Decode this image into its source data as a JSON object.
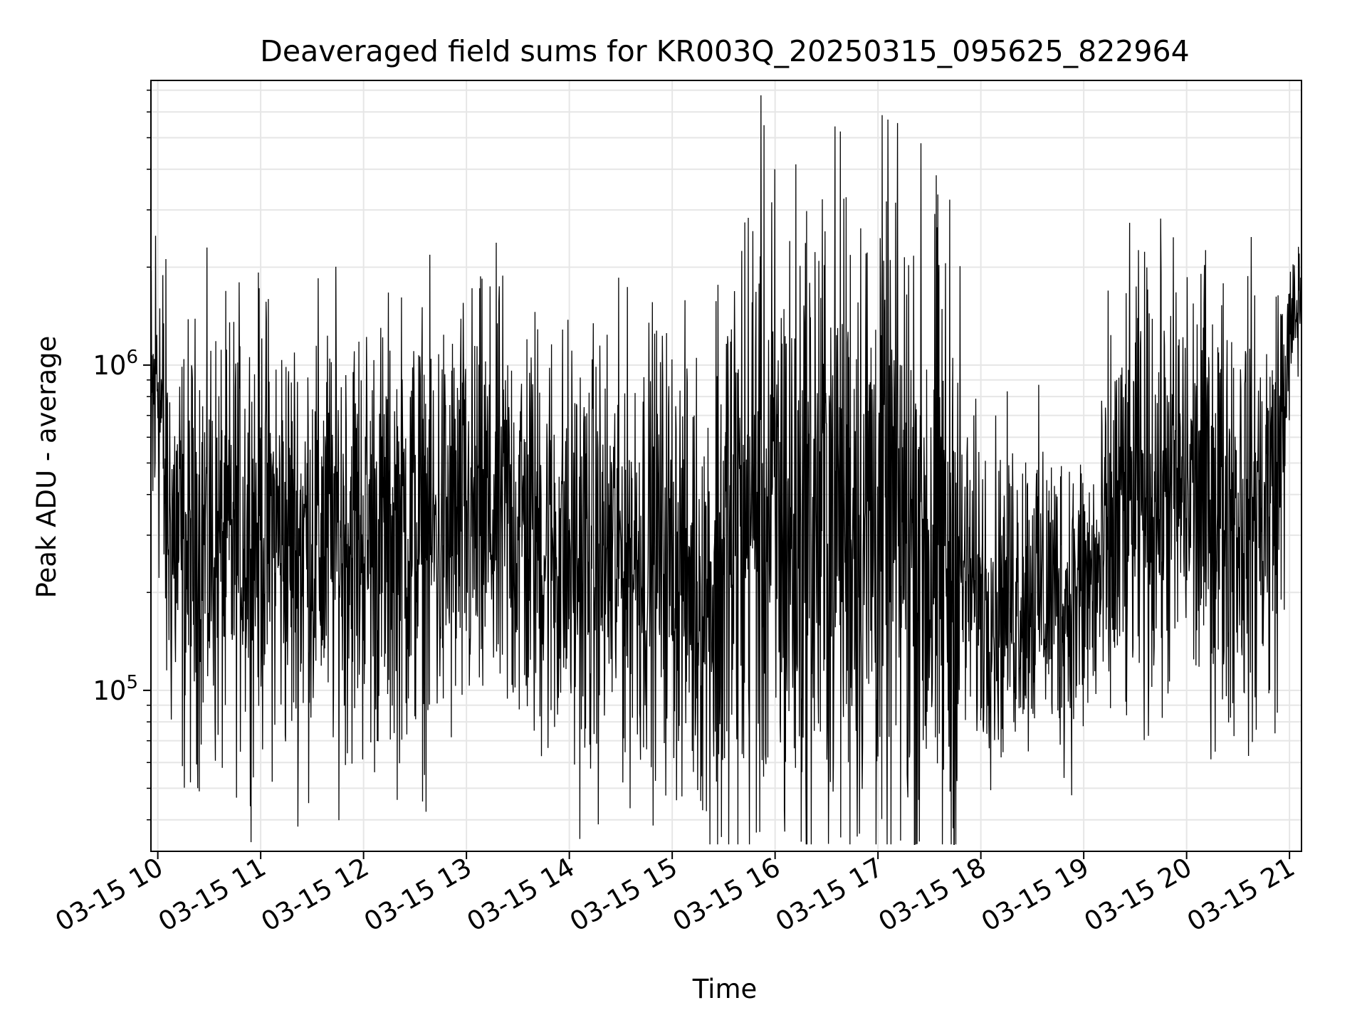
{
  "chart_data": {
    "type": "line",
    "title": "Deaveraged field sums for KR003Q_20250315_095625_822964",
    "xlabel": "Time",
    "ylabel": "Peak ADU - average",
    "yscale": "log",
    "ylim": [
      32000,
      7500000
    ],
    "xlim": [
      "2025-03-15 09:56",
      "2025-03-15 21:07"
    ],
    "xtick_labels": [
      "03-15 10",
      "03-15 11",
      "03-15 12",
      "03-15 13",
      "03-15 14",
      "03-15 15",
      "03-15 16",
      "03-15 17",
      "03-15 18",
      "03-15 19",
      "03-15 20",
      "03-15 21"
    ],
    "ytick_labels": [
      {
        "value": 100000,
        "base": "10",
        "exp": "5"
      },
      {
        "value": 1000000,
        "base": "10",
        "exp": "6"
      }
    ],
    "grid": true,
    "legend": "none",
    "line_color": "#000000",
    "grid_color": "#e6e6e6",
    "series": [
      {
        "x": [
          "2025-03-15 09:56",
          "2025-03-15 10:00",
          "2025-03-15 10:05",
          "2025-03-15 10:10",
          "2025-03-15 10:15",
          "2025-03-15 10:20",
          "2025-03-15 10:25",
          "2025-03-15 10:30",
          "2025-03-15 10:35",
          "2025-03-15 10:40",
          "2025-03-15 10:45",
          "2025-03-15 10:50",
          "2025-03-15 10:55",
          "2025-03-15 11:00",
          "2025-03-15 11:10",
          "2025-03-15 11:20",
          "2025-03-15 11:30",
          "2025-03-15 11:40",
          "2025-03-15 11:50",
          "2025-03-15 12:00",
          "2025-03-15 12:10",
          "2025-03-15 12:20",
          "2025-03-15 12:30",
          "2025-03-15 12:40",
          "2025-03-15 12:50",
          "2025-03-15 13:00",
          "2025-03-15 13:10",
          "2025-03-15 13:20",
          "2025-03-15 13:30",
          "2025-03-15 13:40",
          "2025-03-15 13:50",
          "2025-03-15 14:00",
          "2025-03-15 14:10",
          "2025-03-15 14:20",
          "2025-03-15 14:30",
          "2025-03-15 14:40",
          "2025-03-15 14:50",
          "2025-03-15 15:00",
          "2025-03-15 15:10",
          "2025-03-15 15:20",
          "2025-03-15 15:30",
          "2025-03-15 15:40",
          "2025-03-15 15:45",
          "2025-03-15 15:50",
          "2025-03-15 16:00",
          "2025-03-15 16:10",
          "2025-03-15 16:20",
          "2025-03-15 16:30",
          "2025-03-15 16:40",
          "2025-03-15 16:50",
          "2025-03-15 17:00",
          "2025-03-15 17:10",
          "2025-03-15 17:20",
          "2025-03-15 17:30",
          "2025-03-15 17:40",
          "2025-03-15 17:50",
          "2025-03-15 18:00",
          "2025-03-15 18:10",
          "2025-03-15 18:20",
          "2025-03-15 18:30",
          "2025-03-15 18:40",
          "2025-03-15 18:50",
          "2025-03-15 19:00",
          "2025-03-15 19:10",
          "2025-03-15 19:20",
          "2025-03-15 19:30",
          "2025-03-15 19:40",
          "2025-03-15 19:50",
          "2025-03-15 20:00",
          "2025-03-15 20:10",
          "2025-03-15 20:20",
          "2025-03-15 20:30",
          "2025-03-15 20:40",
          "2025-03-15 20:50",
          "2025-03-15 20:55",
          "2025-03-15 21:00",
          "2025-03-15 21:05",
          "2025-03-15 21:07"
        ],
        "y": [
          500000,
          1100000,
          350000,
          300000,
          250000,
          260000,
          300000,
          280000,
          270000,
          260000,
          300000,
          320000,
          310000,
          330000,
          300000,
          280000,
          300000,
          290000,
          310000,
          300000,
          290000,
          300000,
          310000,
          290000,
          300000,
          320000,
          330000,
          340000,
          330000,
          300000,
          280000,
          260000,
          240000,
          250000,
          260000,
          270000,
          280000,
          260000,
          220000,
          200000,
          230000,
          300000,
          350000,
          380000,
          320000,
          300000,
          320000,
          350000,
          380000,
          340000,
          330000,
          320000,
          300000,
          280000,
          250000,
          220000,
          200000,
          190000,
          200000,
          210000,
          200000,
          190000,
          200000,
          220000,
          330000,
          380000,
          400000,
          420000,
          420000,
          400000,
          380000,
          370000,
          360000,
          380000,
          550000,
          1200000,
          1500000,
          1700000
        ]
      }
    ]
  }
}
